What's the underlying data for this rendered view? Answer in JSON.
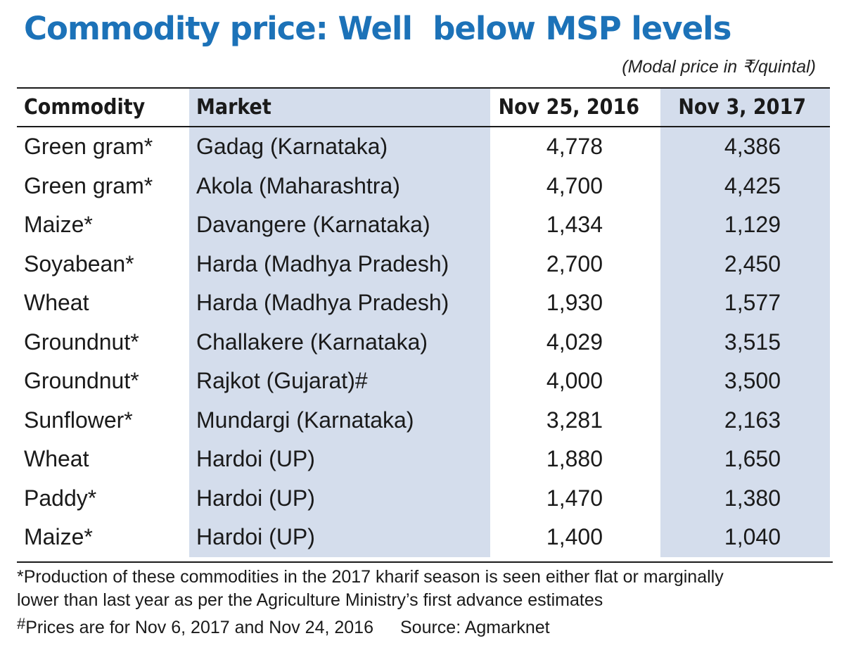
{
  "title": "Commodity price: Well  below MSP levels",
  "units": "(Modal price in ₹/quintal)",
  "colors": {
    "title": "#1c72b8",
    "shaded_column": "#d4ddec"
  },
  "table": {
    "headers": [
      "Commodity",
      "Market",
      "Nov 25, 2016",
      "Nov 3, 2017"
    ],
    "rows": [
      {
        "commodity": "Green gram*",
        "market": "Gadag (Karnataka)",
        "nov_2016": "4,778",
        "nov_2017": "4,386"
      },
      {
        "commodity": "Green gram*",
        "market": "Akola (Maharashtra)",
        "nov_2016": "4,700",
        "nov_2017": "4,425"
      },
      {
        "commodity": "Maize*",
        "market": "Davangere (Karnataka)",
        "nov_2016": "1,434",
        "nov_2017": "1,129"
      },
      {
        "commodity": "Soyabean*",
        "market": "Harda (Madhya Pradesh)",
        "nov_2016": "2,700",
        "nov_2017": "2,450"
      },
      {
        "commodity": "Wheat",
        "market": "Harda (Madhya Pradesh)",
        "nov_2016": "1,930",
        "nov_2017": "1,577"
      },
      {
        "commodity": "Groundnut*",
        "market": "Challakere (Karnataka)",
        "nov_2016": "4,029",
        "nov_2017": "3,515"
      },
      {
        "commodity": "Groundnut*",
        "market": "Rajkot (Gujarat)#",
        "nov_2016": "4,000",
        "nov_2017": "3,500"
      },
      {
        "commodity": "Sunflower*",
        "market": "Mundargi (Karnataka)",
        "nov_2016": "3,281",
        "nov_2017": "2,163"
      },
      {
        "commodity": "Wheat",
        "market": "Hardoi (UP)",
        "nov_2016": "1,880",
        "nov_2017": "1,650"
      },
      {
        "commodity": "Paddy*",
        "market": "Hardoi (UP)",
        "nov_2016": "1,470",
        "nov_2017": "1,380"
      },
      {
        "commodity": "Maize*",
        "market": "Hardoi (UP)",
        "nov_2016": "1,400",
        "nov_2017": "1,040"
      }
    ]
  },
  "footnotes": {
    "asterisk_line1": "*Production of these commodities in the 2017 kharif season is seen either flat or marginally",
    "asterisk_line2": "lower than last year as per the Agriculture Ministry’s first advance estimates",
    "hash_symbol": "#",
    "hash_note": "Prices are for Nov 6, 2017 and Nov 24, 2016",
    "source": "Source: Agmarknet"
  }
}
